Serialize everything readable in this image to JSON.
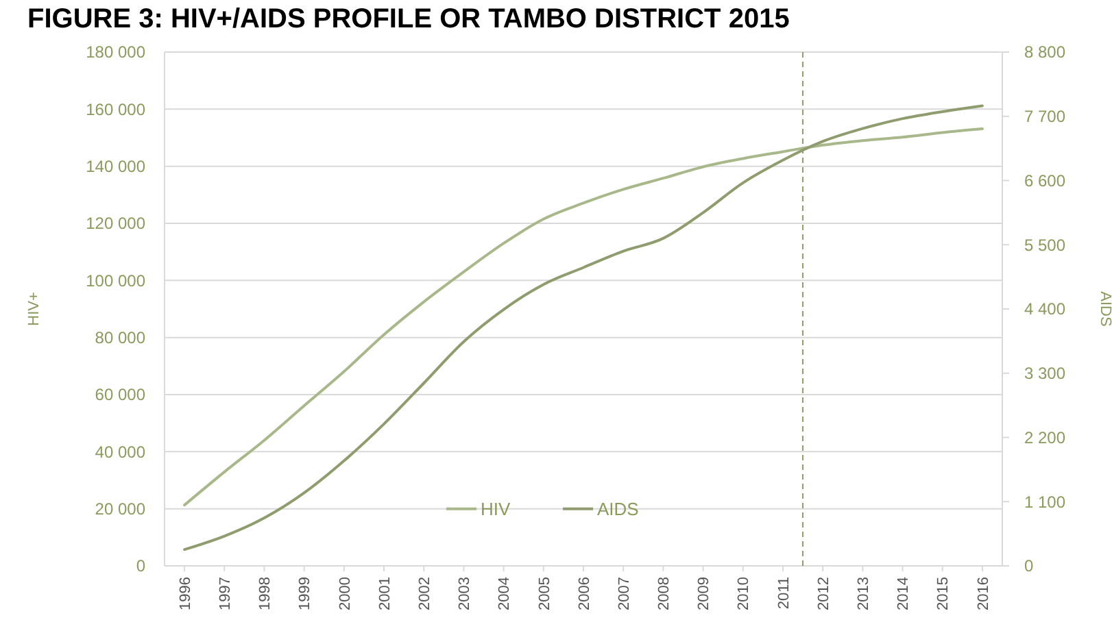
{
  "chart_data": {
    "type": "line",
    "title": "FIGURE 3: HIV+/AIDS PROFILE OR TAMBO DISTRICT 2015",
    "ylabel": "HIV+",
    "y2label": "AIDS",
    "x": [
      1996,
      1997,
      1998,
      1999,
      2000,
      2001,
      2002,
      2003,
      2004,
      2005,
      2006,
      2007,
      2008,
      2009,
      2010,
      2011,
      2012,
      2013,
      2014,
      2015,
      2016
    ],
    "xlim": [
      1995.5,
      2016.5
    ],
    "xticks": [
      1996,
      1997,
      1998,
      1999,
      2000,
      2001,
      2002,
      2003,
      2004,
      2005,
      2006,
      2007,
      2008,
      2009,
      2010,
      2011,
      2012,
      2013,
      2014,
      2015,
      2016
    ],
    "ylim": [
      0,
      180000
    ],
    "yticks": [
      {
        "value": 0,
        "label": "0"
      },
      {
        "value": 20000,
        "label": "20 000"
      },
      {
        "value": 40000,
        "label": "40 000"
      },
      {
        "value": 60000,
        "label": "60 000"
      },
      {
        "value": 80000,
        "label": "80 000"
      },
      {
        "value": 100000,
        "label": "100 000"
      },
      {
        "value": 120000,
        "label": "120 000"
      },
      {
        "value": 140000,
        "label": "140 000"
      },
      {
        "value": 160000,
        "label": "160 000"
      },
      {
        "value": 180000,
        "label": "180 000"
      }
    ],
    "y2lim": [
      0,
      8800
    ],
    "y2ticks": [
      {
        "value": 0,
        "label": "0"
      },
      {
        "value": 1100,
        "label": "1 100"
      },
      {
        "value": 2200,
        "label": "2 200"
      },
      {
        "value": 3300,
        "label": "3 300"
      },
      {
        "value": 4400,
        "label": "4 400"
      },
      {
        "value": 5500,
        "label": "5 500"
      },
      {
        "value": 6600,
        "label": "6 600"
      },
      {
        "value": 7700,
        "label": "7 700"
      },
      {
        "value": 8800,
        "label": "8 800"
      }
    ],
    "series": [
      {
        "name": "HIV",
        "color": "#a8b88a",
        "values": [
          21300,
          32900,
          44000,
          56100,
          68100,
          81000,
          92500,
          103000,
          113000,
          121500,
          127100,
          131900,
          135800,
          139800,
          142700,
          145100,
          147400,
          149000,
          150200,
          151800,
          153100
        ]
      },
      {
        "name": "AIDS",
        "color": "#8e9c6e",
        "axis": "y2",
        "values": [
          280,
          510,
          820,
          1250,
          1800,
          2430,
          3130,
          3840,
          4390,
          4820,
          5110,
          5390,
          5610,
          6050,
          6560,
          6950,
          7270,
          7490,
          7660,
          7780,
          7880
        ]
      }
    ],
    "ref_lines": [
      {
        "axis": "x",
        "value": 2011.5,
        "line_style": "dashed",
        "color": "#8e9c6e"
      }
    ],
    "grid": "y",
    "legend": "bottom",
    "line_style": "solid"
  }
}
